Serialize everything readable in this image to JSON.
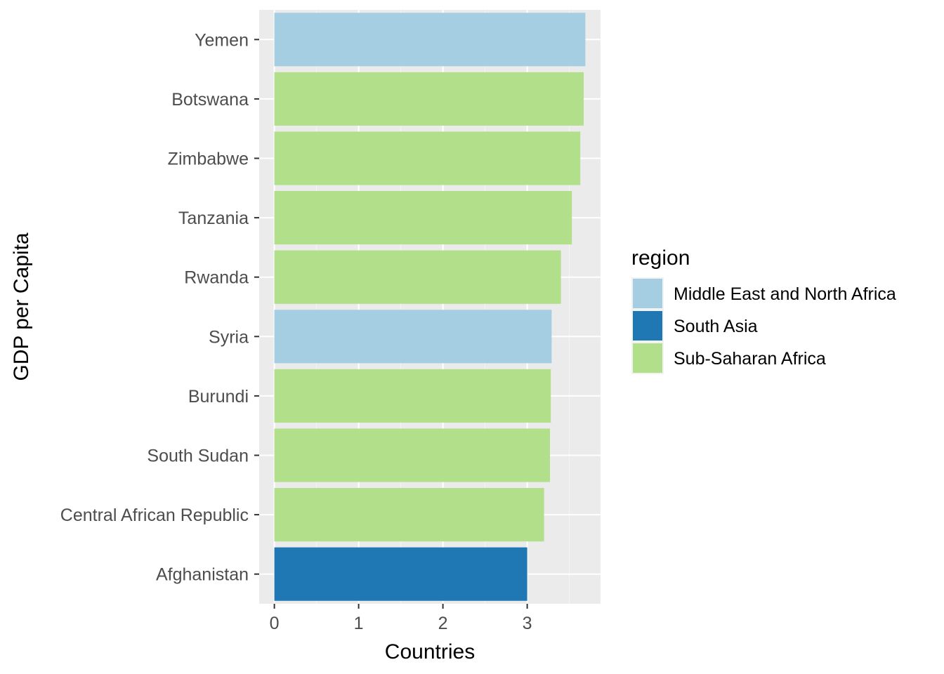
{
  "chart_data": {
    "type": "bar",
    "orientation": "horizontal",
    "categories": [
      "Afghanistan",
      "Central African Republic",
      "South Sudan",
      "Burundi",
      "Syria",
      "Rwanda",
      "Tanzania",
      "Zimbabwe",
      "Botswana",
      "Yemen"
    ],
    "values": [
      3.0,
      3.2,
      3.27,
      3.28,
      3.29,
      3.4,
      3.53,
      3.63,
      3.67,
      3.69
    ],
    "region": [
      "South Asia",
      "Sub-Saharan Africa",
      "Sub-Saharan Africa",
      "Sub-Saharan Africa",
      "Middle East and North Africa",
      "Sub-Saharan Africa",
      "Sub-Saharan Africa",
      "Sub-Saharan Africa",
      "Sub-Saharan Africa",
      "Middle East and North Africa"
    ],
    "xlabel": "Countries",
    "ylabel": "GDP per Capita",
    "xlim": [
      -0.18,
      3.87
    ],
    "xticks": [
      0,
      1,
      2,
      3
    ],
    "xtick_labels": [
      "0",
      "1",
      "2",
      "3"
    ],
    "grid": true,
    "panel_background": "#ebebeb",
    "legend": {
      "title": "region",
      "placement": "right",
      "entries": [
        {
          "label": "Middle East and North Africa",
          "color": "#a6cee3"
        },
        {
          "label": "South Asia",
          "color": "#1f78b4"
        },
        {
          "label": "Sub-Saharan Africa",
          "color": "#b2df8a"
        }
      ]
    }
  }
}
